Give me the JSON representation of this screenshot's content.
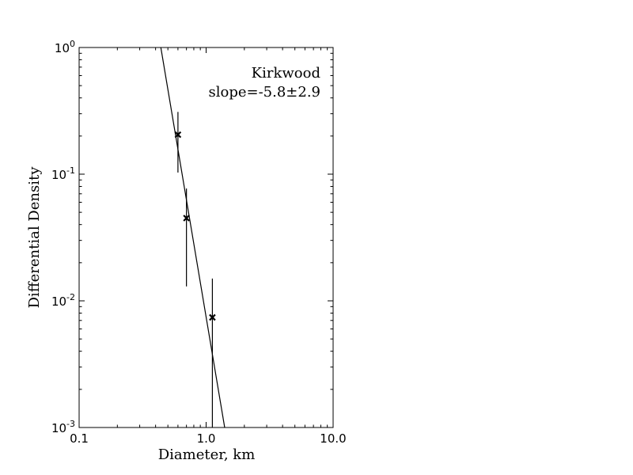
{
  "chart_data": {
    "type": "scatter",
    "xscale": "log",
    "yscale": "log",
    "xlim": [
      0.1,
      10.0
    ],
    "ylim": [
      0.001,
      1.0
    ],
    "xlabel": "Diameter, km",
    "ylabel": "Differential Density",
    "x_tick_labels": [
      "0.1",
      "1.0",
      "10.0"
    ],
    "y_ticks": [
      {
        "base": "10",
        "exp": "0",
        "value": 1.0
      },
      {
        "base": "10",
        "exp": "-1",
        "value": 0.1
      },
      {
        "base": "10",
        "exp": "-2",
        "value": 0.01
      },
      {
        "base": "10",
        "exp": "-3",
        "value": 0.001
      }
    ],
    "annotation_lines": [
      "Kirkwood",
      "slope=-5.8±2.9"
    ],
    "points": [
      {
        "x": 0.6,
        "y": 0.205,
        "yerr_low": 0.103,
        "yerr_high": 0.31
      },
      {
        "x": 0.7,
        "y": 0.045,
        "yerr_low": 0.013,
        "yerr_high": 0.077
      },
      {
        "x": 1.12,
        "y": 0.0074,
        "yerr_low": 0.001,
        "yerr_high": 0.015
      }
    ],
    "fit_line": {
      "slope": -5.8,
      "x_start": 0.44,
      "y_start": 1.0,
      "x_end": 1.4,
      "y_end": 0.001
    },
    "grid": false,
    "legend": "none"
  }
}
